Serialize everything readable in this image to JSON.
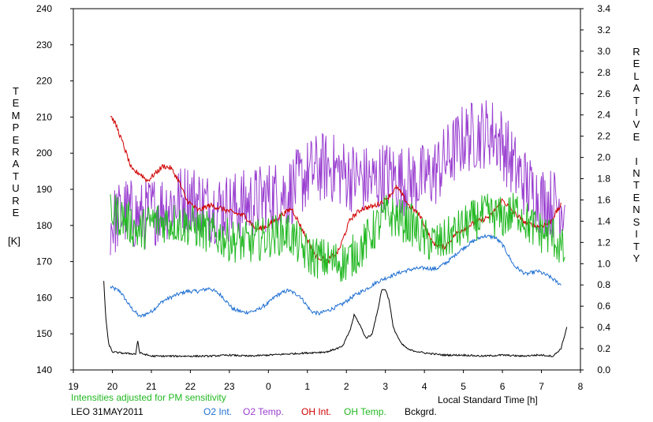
{
  "chart_data": {
    "type": "line",
    "station_label": "LEO 31MAY2011",
    "note": "Intensities adjusted for PM sensitivity",
    "xlabel": "Local Standard Time [h]",
    "ylabel_left": "TEMPERATURE",
    "ylabel_left_unit": "[K]",
    "ylabel_right": "RELATIVE INTENSITY",
    "x_ticks": [
      "19",
      "20",
      "21",
      "22",
      "23",
      "0",
      "1",
      "2",
      "3",
      "4",
      "5",
      "6",
      "7",
      "8"
    ],
    "y_left_ticks": [
      "140",
      "150",
      "160",
      "170",
      "180",
      "190",
      "200",
      "210",
      "220",
      "230",
      "240"
    ],
    "y_right_ticks": [
      "0.0",
      "0.2",
      "0.4",
      "0.6",
      "0.8",
      "1.0",
      "1.2",
      "1.4",
      "1.6",
      "1.8",
      "2.0",
      "2.2",
      "2.4",
      "2.6",
      "2.8",
      "3.0",
      "3.2",
      "3.4"
    ],
    "xlim": [
      19,
      32
    ],
    "ylim_left": [
      140,
      240
    ],
    "ylim_right": [
      0.0,
      3.4
    ],
    "grid": false,
    "legend": [
      {
        "label": "O2 Int.",
        "color": "#1f6fd1"
      },
      {
        "label": "O2 Temp.",
        "color": "#9a40d0"
      },
      {
        "label": "OH Int.",
        "color": "#d00000"
      },
      {
        "label": "OH Temp.",
        "color": "#22b822"
      },
      {
        "label": "Bckgrd.",
        "color": "#000000"
      }
    ],
    "series": [
      {
        "name": "O2 Int.",
        "axis": "right",
        "color": "#1f6fd1",
        "noise": 0.018,
        "x": [
          19.95,
          20.2,
          20.45,
          20.7,
          21.0,
          21.3,
          21.6,
          21.9,
          22.2,
          22.5,
          22.8,
          23.1,
          23.4,
          23.7,
          24.0,
          24.2,
          24.5,
          24.8,
          25.1,
          25.3,
          25.6,
          25.9,
          26.2,
          26.5,
          26.8,
          27.1,
          27.4,
          27.7,
          28.0,
          28.3,
          28.6,
          28.9,
          29.2,
          29.5,
          29.8,
          30.0,
          30.3,
          30.6,
          30.9,
          31.2,
          31.5
        ],
        "y": [
          0.78,
          0.74,
          0.6,
          0.5,
          0.55,
          0.65,
          0.7,
          0.74,
          0.74,
          0.77,
          0.7,
          0.57,
          0.54,
          0.56,
          0.63,
          0.7,
          0.75,
          0.7,
          0.55,
          0.53,
          0.57,
          0.62,
          0.7,
          0.76,
          0.83,
          0.88,
          0.92,
          0.95,
          0.96,
          0.95,
          1.02,
          1.12,
          1.2,
          1.26,
          1.25,
          1.18,
          0.98,
          0.9,
          0.93,
          0.88,
          0.8
        ]
      },
      {
        "name": "O2 Temp.",
        "axis": "left",
        "color": "#9a40d0",
        "noise": 10,
        "x": [
          19.95,
          20.3,
          20.7,
          21.0,
          21.5,
          22.0,
          22.5,
          23.0,
          23.5,
          24.0,
          24.5,
          25.0,
          25.3,
          25.6,
          26.0,
          26.3,
          26.7,
          27.0,
          27.3,
          27.7,
          28.0,
          28.3,
          28.7,
          29.0,
          29.3,
          29.7,
          30.0,
          30.3,
          30.7,
          31.0,
          31.3,
          31.6
        ],
        "y": [
          180,
          184,
          182,
          184,
          186,
          188,
          185,
          185,
          186,
          188,
          189,
          194,
          196,
          196,
          194,
          193,
          192,
          194,
          193,
          192,
          193,
          195,
          200,
          204,
          205,
          206,
          203,
          196,
          190,
          187,
          186,
          186
        ]
      },
      {
        "name": "OH Int.",
        "axis": "right",
        "color": "#d00000",
        "noise": 0.025,
        "x": [
          19.95,
          20.1,
          20.3,
          20.5,
          20.7,
          20.9,
          21.1,
          21.3,
          21.5,
          21.7,
          21.9,
          22.2,
          22.5,
          22.8,
          23.1,
          23.4,
          23.7,
          24.0,
          24.3,
          24.6,
          24.9,
          25.2,
          25.5,
          25.8,
          26.1,
          26.4,
          26.7,
          27.0,
          27.3,
          27.6,
          27.9,
          28.2,
          28.5,
          28.8,
          29.1,
          29.4,
          29.7,
          30.0,
          30.3,
          30.6,
          30.9,
          31.2,
          31.5
        ],
        "y": [
          2.4,
          2.3,
          2.1,
          1.88,
          1.85,
          1.78,
          1.85,
          1.92,
          1.9,
          1.78,
          1.6,
          1.5,
          1.55,
          1.52,
          1.48,
          1.45,
          1.32,
          1.36,
          1.45,
          1.52,
          1.3,
          1.08,
          1.02,
          1.12,
          1.42,
          1.52,
          1.54,
          1.6,
          1.72,
          1.55,
          1.45,
          1.2,
          1.15,
          1.28,
          1.35,
          1.4,
          1.45,
          1.6,
          1.48,
          1.38,
          1.35,
          1.38,
          1.55
        ]
      },
      {
        "name": "OH Temp.",
        "axis": "left",
        "color": "#22b822",
        "noise": 6,
        "x": [
          19.95,
          20.3,
          20.7,
          21.0,
          21.5,
          22.0,
          22.5,
          23.0,
          23.5,
          24.0,
          24.5,
          25.0,
          25.3,
          25.6,
          26.0,
          26.4,
          26.8,
          27.0,
          27.3,
          27.7,
          28.0,
          28.4,
          28.8,
          29.2,
          29.6,
          30.0,
          30.4,
          30.7,
          31.0,
          31.3,
          31.6
        ],
        "y": [
          184,
          182,
          178,
          181,
          181,
          180,
          178,
          176,
          175,
          177,
          178,
          172,
          171,
          170,
          170,
          174,
          180,
          183,
          182,
          180,
          176,
          175,
          178,
          181,
          183,
          182,
          184,
          180,
          178,
          177,
          172
        ]
      },
      {
        "name": "Bckgrd.",
        "axis": "right",
        "color": "#000000",
        "noise": 0.008,
        "x": [
          19.78,
          19.83,
          19.9,
          20.0,
          20.2,
          20.6,
          20.65,
          20.7,
          21.0,
          21.5,
          22.0,
          22.5,
          23.0,
          23.5,
          24.0,
          24.5,
          25.0,
          25.5,
          25.9,
          26.1,
          26.2,
          26.35,
          26.5,
          26.65,
          26.75,
          26.8,
          26.9,
          27.0,
          27.1,
          27.2,
          27.4,
          27.6,
          28.0,
          28.5,
          29.0,
          29.5,
          30.0,
          30.5,
          30.9,
          31.0,
          31.3,
          31.5,
          31.65
        ],
        "y": [
          0.83,
          0.5,
          0.25,
          0.17,
          0.16,
          0.15,
          0.28,
          0.16,
          0.13,
          0.13,
          0.13,
          0.13,
          0.14,
          0.13,
          0.14,
          0.15,
          0.16,
          0.17,
          0.22,
          0.38,
          0.52,
          0.42,
          0.3,
          0.33,
          0.48,
          0.55,
          0.75,
          0.76,
          0.65,
          0.4,
          0.25,
          0.19,
          0.16,
          0.14,
          0.14,
          0.13,
          0.14,
          0.13,
          0.14,
          0.14,
          0.13,
          0.2,
          0.4
        ]
      }
    ]
  }
}
